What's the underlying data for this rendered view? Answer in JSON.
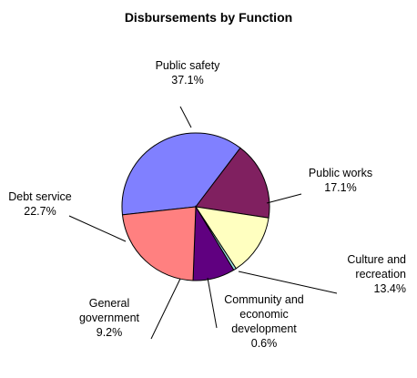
{
  "chart_data": {
    "type": "pie",
    "title": "Disbursements by Function",
    "slices": [
      {
        "label": [
          "Public safety"
        ],
        "percent_label": "37.1%",
        "value": 37.1,
        "color": "#8080ff"
      },
      {
        "label": [
          "Public works"
        ],
        "percent_label": "17.1%",
        "value": 17.1,
        "color": "#802060"
      },
      {
        "label": [
          "Culture and",
          "recreation"
        ],
        "percent_label": "13.4%",
        "value": 13.4,
        "color": "#ffffc0"
      },
      {
        "label": [
          "Community and",
          "economic",
          "development"
        ],
        "percent_label": "0.6%",
        "value": 0.6,
        "color": "#a0e0e0"
      },
      {
        "label": [
          "General",
          "government"
        ],
        "percent_label": "9.2%",
        "value": 9.2,
        "color": "#600080"
      },
      {
        "label": [
          "Debt service"
        ],
        "percent_label": "22.7%",
        "value": 22.7,
        "color": "#ff8080"
      }
    ]
  }
}
